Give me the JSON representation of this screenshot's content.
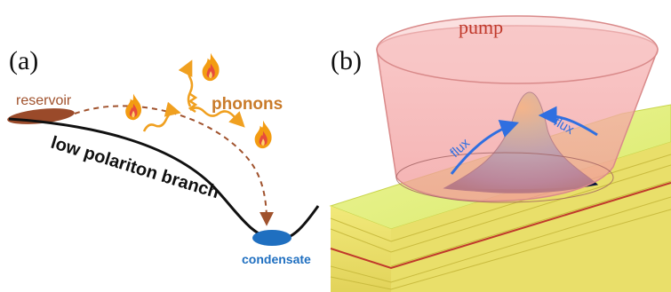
{
  "panel_a": {
    "label": "(a)",
    "reservoir_label": "reservoir",
    "phonons_label": "phonons",
    "branch_label": "low polariton branch",
    "condensate_label": "condensate",
    "colors": {
      "reservoir": "#a0522d",
      "phonon_arrow": "#f0a020",
      "flame_outer": "#f39c12",
      "flame_inner": "#e74c3c",
      "condensate": "#1f6fc0",
      "dashed_arrow": "#a0522d"
    },
    "icons": [
      "flame-icon",
      "flame-icon",
      "flame-icon",
      "flame-icon"
    ]
  },
  "panel_b": {
    "label": "(b)",
    "pump_label": "pump",
    "flux_left": "flux",
    "flux_right": "flux",
    "colors": {
      "pump_cone": "#f4a6a6",
      "pump_text": "#c0392b",
      "flux": "#2f6fe0",
      "substrate_top": "#e6f07a",
      "substrate_layer": "#c8d44a",
      "substrate_line": "#c0392b",
      "condensate_peak": "#f2c200",
      "condensate_base": "#1a2a6c"
    }
  }
}
